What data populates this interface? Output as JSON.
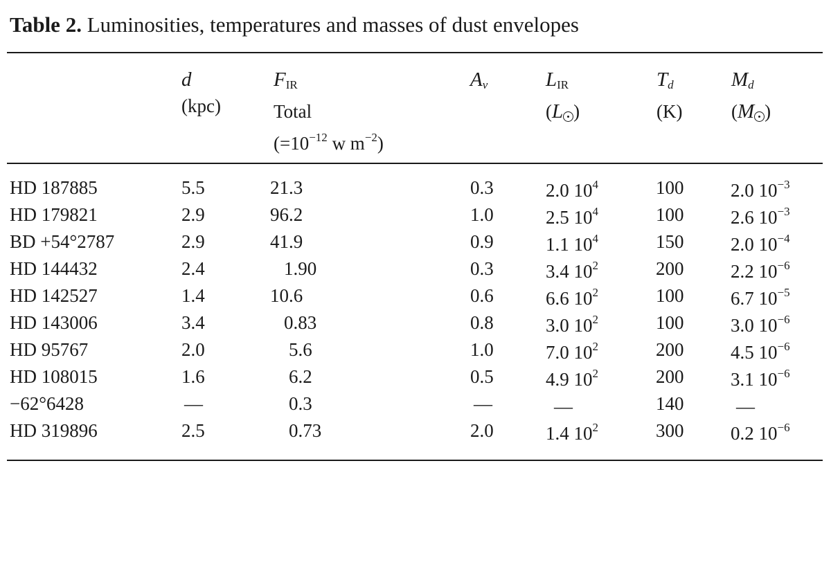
{
  "caption": {
    "label": "Table 2.",
    "text": "Luminosities, temperatures and masses of dust envelopes"
  },
  "headers": {
    "d": {
      "symbol": "d",
      "unit": "(kpc)"
    },
    "fir": {
      "symbol": "F",
      "sub": "IR",
      "line2": "Total",
      "line3_pre": "(=10",
      "line3_exp1": "−12",
      "line3_mid": " w m",
      "line3_exp2": "−2",
      "line3_post": ")"
    },
    "av": {
      "symbol": "A",
      "sub": "v"
    },
    "lir": {
      "symbol": "L",
      "sub": "IR",
      "unit_pre": "(",
      "unit_sym": "L",
      "unit_post": ")"
    },
    "td": {
      "symbol": "T",
      "sub": "d",
      "unit": "(K)"
    },
    "md": {
      "symbol": "M",
      "sub": "d",
      "unit_pre": "(",
      "unit_sym": "M",
      "unit_post": ")"
    }
  },
  "rows": [
    {
      "name": "HD 187885",
      "d": "5.5",
      "fir": "21.3",
      "av": "0.3",
      "lir_m": "2.0 10",
      "lir_e": "4",
      "td": "100",
      "md_m": "2.0 10",
      "md_e": "−3"
    },
    {
      "name": "HD 179821",
      "d": "2.9",
      "fir": "96.2",
      "av": "1.0",
      "lir_m": "2.5 10",
      "lir_e": "4",
      "td": "100",
      "md_m": "2.6 10",
      "md_e": "−3"
    },
    {
      "name": "BD +54°2787",
      "d": "2.9",
      "fir": "41.9",
      "av": "0.9",
      "lir_m": "1.1 10",
      "lir_e": "4",
      "td": "150",
      "md_m": "2.0 10",
      "md_e": "−4"
    },
    {
      "name": "HD 144432",
      "d": "2.4",
      "fir": "1.90",
      "av": "0.3",
      "lir_m": "3.4 10",
      "lir_e": "2",
      "td": "200",
      "md_m": "2.2 10",
      "md_e": "−6"
    },
    {
      "name": "HD 142527",
      "d": "1.4",
      "fir": "10.6",
      "av": "0.6",
      "lir_m": "6.6 10",
      "lir_e": "2",
      "td": "100",
      "md_m": "6.7 10",
      "md_e": "−5"
    },
    {
      "name": "HD 143006",
      "d": "3.4",
      "fir": "0.83",
      "av": "0.8",
      "lir_m": "3.0 10",
      "lir_e": "2",
      "td": "100",
      "md_m": "3.0 10",
      "md_e": "−6"
    },
    {
      "name": "HD 95767",
      "d": "2.0",
      "fir": "5.6",
      "av": "1.0",
      "lir_m": "7.0 10",
      "lir_e": "2",
      "td": "200",
      "md_m": "4.5 10",
      "md_e": "−6"
    },
    {
      "name": "HD 108015",
      "d": "1.6",
      "fir": "6.2",
      "av": "0.5",
      "lir_m": "4.9 10",
      "lir_e": "2",
      "td": "200",
      "md_m": "3.1 10",
      "md_e": "−6"
    },
    {
      "name": "−62°6428",
      "d": "—",
      "fir": "0.3",
      "av": "—",
      "lir_m": "—",
      "lir_e": "",
      "td": "140",
      "md_m": "—",
      "md_e": ""
    },
    {
      "name": "HD 319896",
      "d": "2.5",
      "fir": "0.73",
      "av": "2.0",
      "lir_m": "1.4 10",
      "lir_e": "2",
      "td": "300",
      "md_m": "0.2 10",
      "md_e": "−6"
    }
  ]
}
